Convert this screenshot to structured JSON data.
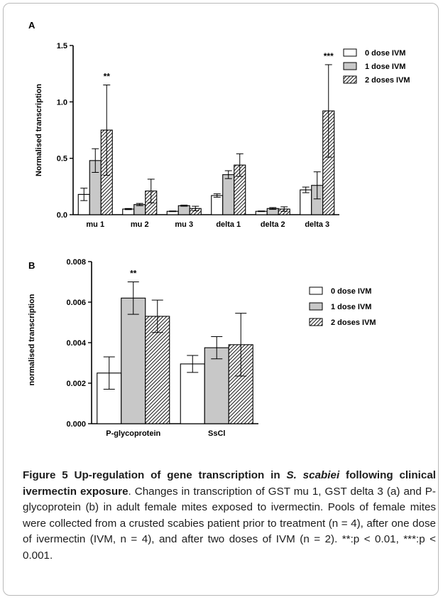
{
  "chart_data": [
    {
      "panel": "A",
      "type": "bar",
      "ylabel": "Normalised transcription",
      "ylim": [
        0,
        1.5
      ],
      "yticks": [
        "0.0",
        "0.5",
        "1.0",
        "1.5"
      ],
      "yticks_values": [
        0,
        0.5,
        1.0,
        1.5
      ],
      "categories": [
        "mu 1",
        "mu 2",
        "mu 3",
        "delta 1",
        "delta 2",
        "delta 3"
      ],
      "series": [
        {
          "name": "0 dose IVM",
          "fill": "white",
          "values": [
            0.18,
            0.05,
            0.03,
            0.17,
            0.03,
            0.22
          ],
          "errors": [
            0.055,
            0.005,
            0.003,
            0.015,
            0.003,
            0.025
          ]
        },
        {
          "name": "1 dose IVM",
          "fill": "gray",
          "values": [
            0.48,
            0.09,
            0.08,
            0.355,
            0.055,
            0.26
          ],
          "errors": [
            0.105,
            0.01,
            0.005,
            0.035,
            0.008,
            0.12
          ]
        },
        {
          "name": "2 doses IVM",
          "fill": "hatch",
          "values": [
            0.75,
            0.21,
            0.055,
            0.44,
            0.05,
            0.92
          ],
          "errors": [
            0.4,
            0.105,
            0.02,
            0.1,
            0.02,
            0.41
          ]
        }
      ],
      "annotations": [
        {
          "category": "mu 1",
          "text": "**"
        },
        {
          "category": "delta 3",
          "text": "***"
        }
      ],
      "legend": "top-right"
    },
    {
      "panel": "B",
      "type": "bar",
      "ylabel": "normalised transcription",
      "ylim": [
        0,
        0.008
      ],
      "yticks": [
        "0.000",
        "0.002",
        "0.004",
        "0.006",
        "0.008"
      ],
      "yticks_values": [
        0,
        0.002,
        0.004,
        0.006,
        0.008
      ],
      "categories": [
        "P-glycoprotein",
        "SsCl"
      ],
      "series": [
        {
          "name": "0 dose IVM",
          "fill": "white",
          "values": [
            0.0025,
            0.00295
          ],
          "errors": [
            0.0008,
            0.00042
          ]
        },
        {
          "name": "1 dose IVM",
          "fill": "gray",
          "values": [
            0.0062,
            0.00375
          ],
          "errors": [
            0.0008,
            0.00055
          ]
        },
        {
          "name": "2 doses IVM",
          "fill": "hatch",
          "values": [
            0.0053,
            0.0039
          ],
          "errors": [
            0.0008,
            0.00155
          ]
        }
      ],
      "annotations": [
        {
          "category": "P-glycoprotein",
          "series": 1,
          "text": "**"
        }
      ],
      "legend": "top-right"
    }
  ],
  "caption": {
    "label": "Figure 5",
    "title_pre": "Up-regulation of gene transcription in ",
    "title_italic": "S. scabiei",
    "title_post": " following clinical ivermectin exposure",
    "body": ". Changes in transcription of GST mu 1, GST delta 3 (a) and P-glycoprotein (b) in adult female mites exposed to ivermectin. Pools of female mites were collected from a crusted scabies patient prior to treatment (n = 4), after one dose of ivermectin (IVM, n = 4), and after two doses of IVM (n = 2). **:p < 0.01, ***:p < 0.001."
  },
  "colors": {
    "gray_fill": "#c8c8c8",
    "line": "#000000"
  }
}
